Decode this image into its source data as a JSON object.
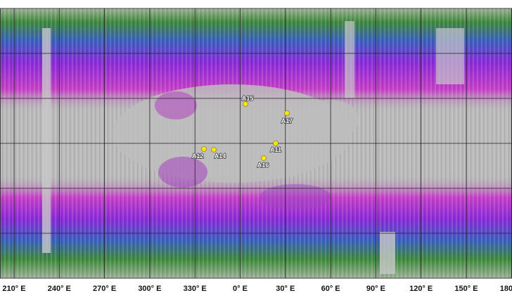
{
  "map": {
    "longitude_labels": [
      "210° E",
      "240° E",
      "270° E",
      "300° E",
      "330° E",
      "0° E",
      "30° E",
      "60° E",
      "90° E",
      "120° E",
      "150° E",
      "180° E"
    ],
    "sites": [
      {
        "label": "A15"
      },
      {
        "label": "A17"
      },
      {
        "label": "A11"
      },
      {
        "label": "A12"
      },
      {
        "label": "A14"
      },
      {
        "label": "A16"
      }
    ]
  }
}
